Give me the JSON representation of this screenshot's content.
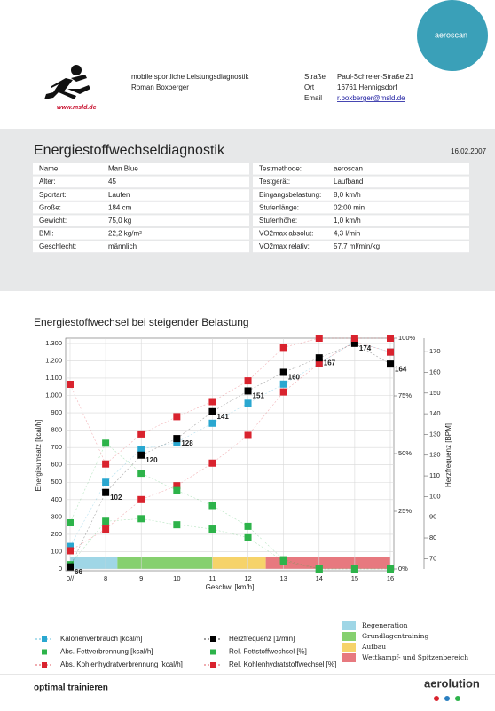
{
  "header": {
    "tagline": "mobile sportliche Leistungsdiagnostik",
    "name": "Roman Boxberger",
    "logo_url": "www.msld.de",
    "badge": "aeroscan",
    "contact": [
      {
        "label": "Straße",
        "value": "Paul-Schreier-Straße 21"
      },
      {
        "label": "Ort",
        "value": "16761 Hennigsdorf"
      },
      {
        "label": "Email",
        "value": "r.boxberger@msld.de"
      }
    ]
  },
  "report": {
    "title": "Energiestoffwechseldiagnostik",
    "date": "16.02.2007",
    "left_table": [
      [
        "Name:",
        "Man Blue"
      ],
      [
        "Alter:",
        "45"
      ],
      [
        "Sportart:",
        "Laufen"
      ],
      [
        "Große:",
        "184 cm"
      ],
      [
        "Gewicht:",
        "75,0 kg"
      ],
      [
        "BMI:",
        "22,2 kg/m²"
      ],
      [
        "Geschlecht:",
        "männlich"
      ]
    ],
    "right_table": [
      [
        "Testmethode:",
        "aeroscan"
      ],
      [
        "Testgerät:",
        "Laufband"
      ],
      [
        "Eingangsbelastung:",
        "8,0 km/h"
      ],
      [
        "Stufenlänge:",
        "02:00 min"
      ],
      [
        "Stufenhöhe:",
        "1,0 km/h"
      ],
      [
        "VO2max absolut:",
        "4,3 l/min"
      ],
      [
        "VO2max relativ:",
        "57,7 ml/min/kg"
      ]
    ]
  },
  "chart_data": {
    "type": "line",
    "title": "Energiestoffwechsel bei steigender Belastung",
    "xlabel": "Geschw. [km/h]",
    "ylabel": "Energieumsatz [kcal/h]",
    "y3label": "Herzfrequenz [BPM]",
    "x": [
      7,
      8,
      9,
      10,
      11,
      12,
      13,
      14,
      15,
      16
    ],
    "xlim": [
      7,
      16
    ],
    "xticks": [
      {
        "value": 7,
        "label": "0//"
      },
      8,
      9,
      10,
      11,
      12,
      13,
      14,
      15,
      16
    ],
    "ylim": [
      0,
      1330
    ],
    "yticks": [
      0,
      100,
      200,
      300,
      400,
      500,
      600,
      700,
      800,
      900,
      {
        "value": 1000,
        "label": "1.000"
      },
      {
        "value": 1100,
        "label": "1.100"
      },
      {
        "value": 1200,
        "label": "1.200"
      },
      {
        "value": 1300,
        "label": "1.300"
      }
    ],
    "y2lim": [
      0,
      100
    ],
    "y2ticks": [
      {
        "value": 0,
        "label": "0%"
      },
      {
        "value": 25,
        "label": "25%"
      },
      {
        "value": 50,
        "label": "50%"
      },
      {
        "value": 75,
        "label": "75%"
      },
      {
        "value": 100,
        "label": "100%"
      }
    ],
    "y3lim": [
      65,
      176.5
    ],
    "y3ticks": [
      70,
      80,
      90,
      100,
      110,
      120,
      130,
      140,
      150,
      160,
      170
    ],
    "grid": true,
    "series": [
      {
        "name": "Kalorienverbrauch [kcal/h]",
        "color": "#2aa7d0",
        "values": [
          130,
          500,
          690,
          730,
          840,
          955,
          1065,
          1185,
          1310,
          1250
        ]
      },
      {
        "name": "Abs. Fettverbrennung [kcal/h]",
        "color": "#2db34a",
        "values": [
          25,
          275,
          290,
          255,
          230,
          180,
          45,
          0,
          0,
          0
        ]
      },
      {
        "name": "Abs. Kohlenhydratverbrennung [kcal/h]",
        "color": "#d9232e",
        "values": [
          105,
          230,
          400,
          480,
          610,
          770,
          1020,
          1185,
          1310,
          1250
        ]
      },
      {
        "name": "Herzfrequenz [1/min]",
        "color": "#000000",
        "axis": "y3",
        "show_values": true,
        "values": [
          66,
          102,
          120,
          128,
          141,
          151,
          160,
          167,
          174,
          164
        ]
      },
      {
        "name": "Rel. Fettstoffwechsel [%]",
        "color": "#2db34a",
        "axis": "y2",
        "values": [
          20,
          54.5,
          41.5,
          34,
          27.5,
          18.5,
          4,
          0,
          0,
          0
        ]
      },
      {
        "name": "Rel. Kohlenhydratstoffwechsel [%]",
        "color": "#d9232e",
        "axis": "y2",
        "values": [
          80,
          45.5,
          58.5,
          66,
          72.5,
          81.5,
          96,
          100,
          100,
          100
        ]
      }
    ],
    "zones": [
      {
        "name": "Regeneration",
        "color": "#9fd6e6",
        "from": 7,
        "to": 8.33
      },
      {
        "name": "Grundlagentraining",
        "color": "#86d06f",
        "from": 8.33,
        "to": 11
      },
      {
        "name": "Aufbau",
        "color": "#f6d36a",
        "from": 11,
        "to": 12.5
      },
      {
        "name": "Wettkampf- und Spitzenbereich",
        "color": "#e7797f",
        "from": 12.5,
        "to": 16
      }
    ]
  },
  "footer": {
    "slogan": "optimal trainieren",
    "brand": "aerolution"
  }
}
